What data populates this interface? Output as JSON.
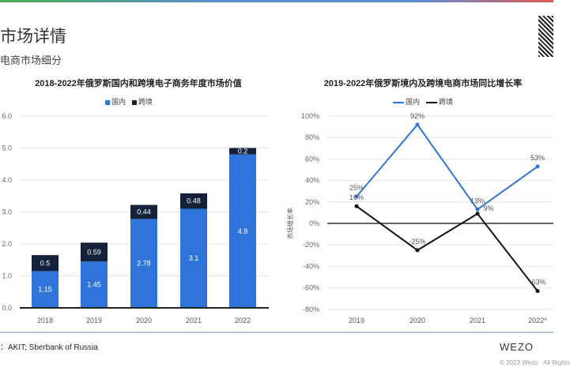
{
  "page": {
    "title": "市场详情",
    "subtitle": "电商市场细分",
    "source": "：AKIT; Sberbank of Russia",
    "logo": "WEZO",
    "copyright": "© 2023 Wezo · All Rights"
  },
  "chart_data": [
    {
      "type": "bar",
      "stacked": true,
      "title": "2018-2022年俄罗斯国内和跨境电子商务年度市场价值",
      "categories": [
        "2018",
        "2019",
        "2020",
        "2021",
        "2022"
      ],
      "series": [
        {
          "name": "国内",
          "values": [
            1.15,
            1.45,
            2.78,
            3.1,
            4.8
          ],
          "color": "#2f74d8"
        },
        {
          "name": "跨境",
          "values": [
            0.5,
            0.59,
            0.44,
            0.48,
            0.2
          ],
          "color": "#14213a"
        }
      ],
      "ylim": [
        0,
        6
      ],
      "yticks": [
        "0.0",
        "1.0",
        "2.0",
        "3.0",
        "4.0",
        "5.0",
        "6.0"
      ],
      "grid": true,
      "legend": "top"
    },
    {
      "type": "line",
      "title": "2019-2022年俄罗斯境内及跨境电商市场同比增长率",
      "categories": [
        "2019",
        "2020",
        "2021",
        "2022*"
      ],
      "ylabel": "市场增长率",
      "series": [
        {
          "name": "国内",
          "values": [
            25,
            92,
            13,
            53
          ],
          "labels": [
            "25%",
            "92%",
            "13%",
            "53%"
          ],
          "color": "#2f74d8"
        },
        {
          "name": "跨境",
          "values": [
            16,
            -25,
            9,
            -63
          ],
          "labels": [
            "16%",
            "-25%",
            "9%",
            "-63%"
          ],
          "color": "#111"
        }
      ],
      "ylim": [
        -80,
        100
      ],
      "yticks": [
        "-80%",
        "-60%",
        "-40%",
        "-20%",
        "0%",
        "20%",
        "40%",
        "60%",
        "80%",
        "100%"
      ],
      "grid": true,
      "legend": "top"
    }
  ]
}
